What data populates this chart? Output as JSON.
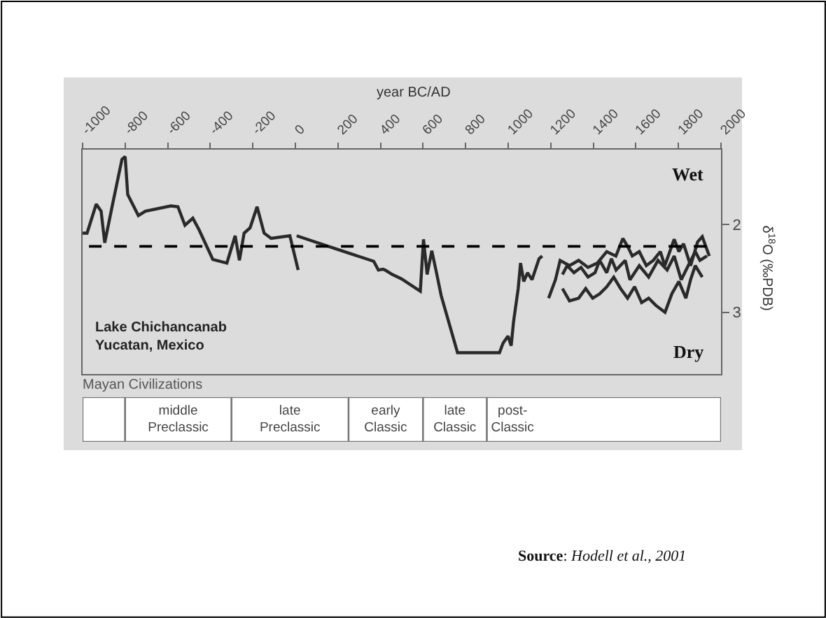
{
  "chart_data": [
    {
      "type": "line",
      "xlabel": "year BC/AD",
      "ylabel": "δ$^{18}$O (‰PDB)",
      "xlim": [
        -1000,
        2000
      ],
      "xticks": [
        -1000,
        -800,
        -600,
        -400,
        -200,
        0,
        200,
        400,
        600,
        800,
        1000,
        1200,
        1400,
        1600,
        1800,
        2000
      ],
      "ylim": [
        3.7,
        1.15
      ],
      "yticks": [
        2,
        3
      ],
      "series": [
        {
          "color": "#2a2a2a",
          "x": [
            -1000,
            -979,
            -936,
            -913,
            -896,
            -859,
            -815,
            -800,
            -788,
            -738,
            -705,
            -585,
            -552,
            -519,
            -482,
            -453,
            -388,
            -322,
            -283,
            -263,
            -241,
            -213,
            -180,
            -147,
            -114,
            -26,
            13
          ],
          "values": [
            2.1,
            2.1,
            1.77,
            1.85,
            2.21,
            1.77,
            1.26,
            1.23,
            1.66,
            1.9,
            1.85,
            1.79,
            1.8,
            2.01,
            1.93,
            2.06,
            2.4,
            2.44,
            2.13,
            2.41,
            2.1,
            2.04,
            1.8,
            2.1,
            2.16,
            2.13,
            2.52
          ]
        },
        {
          "color": "#2a2a2a",
          "x": [
            6,
            192,
            368,
            390,
            411,
            422,
            455,
            499,
            587,
            602,
            619,
            641,
            663,
            685,
            762,
            959,
            976,
            999,
            1014,
            1025,
            1047,
            1058,
            1073,
            1091,
            1112,
            1145,
            1160
          ],
          "values": [
            2.13,
            2.28,
            2.42,
            2.52,
            2.51,
            2.52,
            2.57,
            2.62,
            2.76,
            2.17,
            2.57,
            2.3,
            2.55,
            2.81,
            3.46,
            3.46,
            3.35,
            3.27,
            3.38,
            3.11,
            2.73,
            2.44,
            2.65,
            2.55,
            2.63,
            2.39,
            2.36
          ]
        },
        {
          "color": "#2a2a2a",
          "x": [
            1190,
            1222,
            1244,
            1288,
            1331,
            1375,
            1419,
            1463,
            1506,
            1539,
            1561,
            1583,
            1616,
            1649,
            1682,
            1715,
            1736,
            1780,
            1802,
            1824,
            1857,
            1890,
            1912,
            1945
          ],
          "values": [
            2.84,
            2.63,
            2.41,
            2.47,
            2.41,
            2.49,
            2.44,
            2.31,
            2.36,
            2.16,
            2.25,
            2.36,
            2.31,
            2.47,
            2.41,
            2.31,
            2.47,
            2.17,
            2.31,
            2.22,
            2.47,
            2.2,
            2.14,
            2.36
          ]
        },
        {
          "color": "#2a2a2a",
          "x": [
            1255,
            1277,
            1309,
            1342,
            1375,
            1408,
            1430,
            1463,
            1485,
            1507,
            1550,
            1572,
            1616,
            1660,
            1704,
            1747,
            1780,
            1813,
            1846,
            1879,
            1901,
            1934
          ],
          "values": [
            2.57,
            2.47,
            2.55,
            2.49,
            2.6,
            2.55,
            2.41,
            2.55,
            2.39,
            2.52,
            2.41,
            2.63,
            2.47,
            2.6,
            2.41,
            2.52,
            2.36,
            2.63,
            2.47,
            2.31,
            2.41,
            2.36
          ]
        },
        {
          "color": "#2a2a2a",
          "x": [
            1255,
            1288,
            1331,
            1364,
            1397,
            1430,
            1463,
            1496,
            1528,
            1561,
            1594,
            1627,
            1660,
            1693,
            1737,
            1769,
            1802,
            1835,
            1857,
            1879,
            1912
          ],
          "values": [
            2.73,
            2.87,
            2.84,
            2.73,
            2.84,
            2.79,
            2.71,
            2.6,
            2.73,
            2.84,
            2.71,
            2.89,
            2.84,
            2.92,
            3.0,
            2.79,
            2.65,
            2.84,
            2.63,
            2.47,
            2.6
          ]
        }
      ],
      "ref_lines": [
        {
          "axis": "y",
          "value": 2.25,
          "color": "#000000",
          "line_style": "dashed"
        }
      ],
      "annotations": [
        "Wet",
        "Dry",
        "Lake Chichancanab\nYucatan, Mexico",
        "Source: Hodell et al., 2001"
      ]
    },
    {
      "type": "bar",
      "orientation": "horizontal",
      "title": "Mayan Civilizations",
      "categories": [
        null
      ],
      "xlim": [
        -1000,
        2000
      ],
      "tick_labels": false,
      "series": [
        {
          "color": "#ffffff",
          "base": [
            -1000
          ],
          "values": [
            200
          ]
        },
        {
          "color": "#ffffff",
          "base": [
            -800
          ],
          "values": [
            500
          ],
          "value_labels": [
            "middle\nPreclassic"
          ]
        },
        {
          "color": "#ffffff",
          "base": [
            -300
          ],
          "values": [
            550
          ],
          "value_labels": [
            "late\nPreclassic"
          ]
        },
        {
          "color": "#ffffff",
          "base": [
            250
          ],
          "values": [
            350
          ],
          "value_labels": [
            "early\nClassic"
          ]
        },
        {
          "color": "#ffffff",
          "base": [
            600
          ],
          "values": [
            300
          ],
          "value_labels": [
            "late\nClassic"
          ]
        },
        {
          "color": "#ffffff",
          "base": [
            900
          ],
          "values": [
            1100
          ],
          "value_labels": [
            "post-\nClassic"
          ]
        }
      ]
    }
  ]
}
